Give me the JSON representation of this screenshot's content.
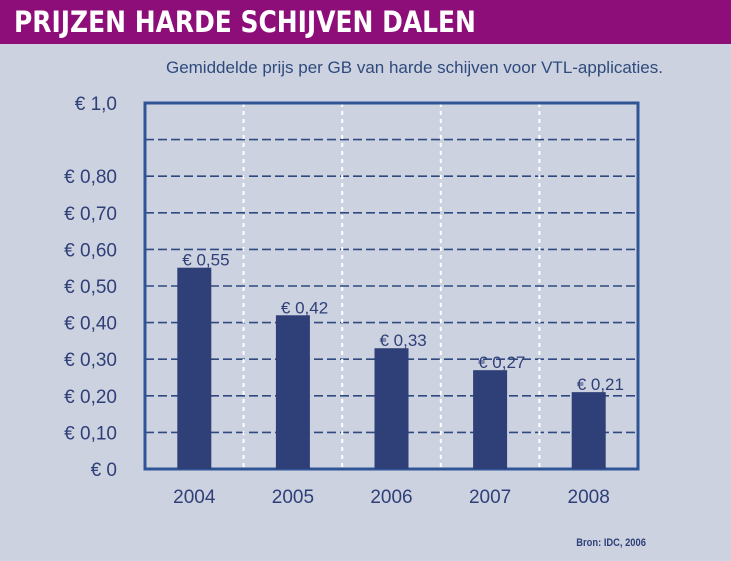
{
  "header": {
    "title": "PRIJZEN HARDE SCHIJVEN DALEN"
  },
  "source": "Bron: IDC, 2006",
  "colors": {
    "header": "#8d0e78",
    "background": "#ccd2e0",
    "bar": "#2f3f78",
    "frame": "#2f5596"
  },
  "chart_data": {
    "type": "bar",
    "title": "",
    "subtitle": "Gemiddelde prijs per GB van harde schijven voor VTL-applicaties.",
    "xlabel": "",
    "ylabel": "",
    "categories": [
      "2004",
      "2005",
      "2006",
      "2007",
      "2008"
    ],
    "values": [
      0.55,
      0.42,
      0.33,
      0.27,
      0.21
    ],
    "value_labels": [
      "€ 0,55",
      "€ 0,42",
      "€ 0,33",
      "€ 0,27",
      "€ 0,21"
    ],
    "ylim": [
      0,
      1.0
    ],
    "yticks": [
      0,
      0.1,
      0.2,
      0.3,
      0.4,
      0.5,
      0.6,
      0.7,
      0.8,
      0.9,
      1.0
    ],
    "ytick_labels": [
      "€ 0",
      "€ 0,10",
      "€ 0,20",
      "€ 0,30",
      "€ 0,40",
      "€ 0,50",
      "€ 0,60",
      "€ 0,70",
      "€ 0,80",
      "",
      "€ 1,0"
    ],
    "grid": true,
    "legend": "none"
  }
}
